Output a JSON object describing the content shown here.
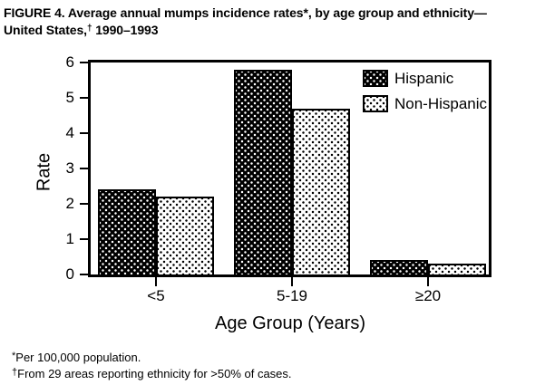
{
  "title": {
    "line1": "FIGURE 4. Average annual mumps incidence rates*, by age group and ethnicity—",
    "line2_pre": "United States,",
    "line2_marker": "†",
    "line2_post": " 1990–1993"
  },
  "chart_data": {
    "type": "bar",
    "title": "",
    "categories": [
      "<5",
      "5-19",
      "≥20"
    ],
    "series": [
      {
        "name": "Hispanic",
        "values": [
          2.4,
          5.8,
          0.4
        ],
        "fill": "#000000",
        "dot_color": "#ffffff"
      },
      {
        "name": "Non-Hispanic",
        "values": [
          2.2,
          4.7,
          0.3
        ],
        "fill": "#ffffff",
        "dot_color": "#000000"
      }
    ],
    "xlabel": "Age Group (Years)",
    "ylabel": "Rate",
    "ylim": [
      0,
      6
    ],
    "yticks": [
      0,
      1,
      2,
      3,
      4,
      5,
      6
    ],
    "grid": false,
    "legend_position": "top-right",
    "bar_border_color": "#000000",
    "axis_color": "#000000"
  },
  "footnotes": [
    {
      "marker": "*",
      "text": "Per 100,000 population."
    },
    {
      "marker": "†",
      "text": "From 29 areas reporting ethnicity for >50% of cases."
    }
  ]
}
